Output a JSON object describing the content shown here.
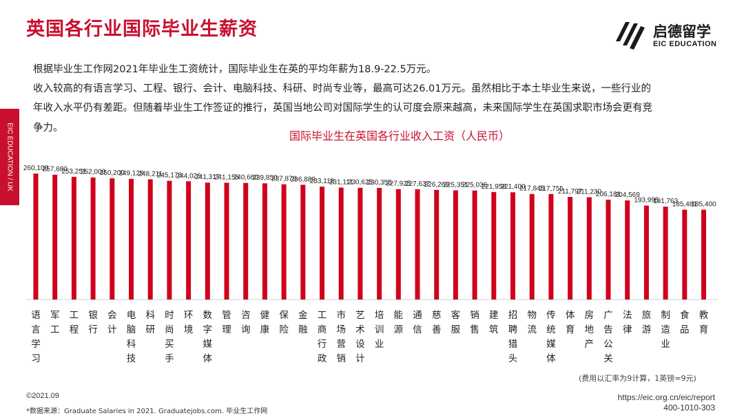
{
  "header": {
    "title": "英国各行业国际毕业生薪资",
    "logo_cn": "启德留学",
    "logo_en": "EIC EDUCATION",
    "brand_color": "#c8102e"
  },
  "sidebar": {
    "label": "EIC EDUCATION / UK"
  },
  "intro": {
    "line1": "根据毕业生工作网2021年毕业生工资统计，国际毕业生在英的平均年薪为18.9-22.5万元。",
    "line2": "收入较高的有语言学习、工程、银行、会计、电脑科技、科研、时尚专业等，最高可达26.01万元。虽然相比于本土毕业生来说，一些行业的",
    "line3": "年收入水平仍有差距。但随着毕业生工作签证的推行，英国当地公司对国际学生的认可度会原来越高，未来国际学生在英国求职市场会更有竞",
    "line4": "争力。"
  },
  "chart_data": {
    "type": "bar",
    "title": "国际毕业生在英国各行业收入工资（人民币）",
    "categories": [
      "语言学习",
      "军工",
      "工程",
      "银行",
      "会计",
      "电脑科技",
      "科研",
      "时尚买手",
      "环境",
      "数字媒体",
      "管理",
      "咨询",
      "健康",
      "保险",
      "金融",
      "工商行政",
      "市场营销",
      "艺术设计",
      "培训业",
      "能源",
      "通信",
      "慈善",
      "客服",
      "销售",
      "建筑",
      "招聘猎头",
      "物流",
      "传统媒体",
      "体育",
      "房地产",
      "广告公关",
      "法律",
      "旅游",
      "制造业",
      "食品",
      "教育"
    ],
    "values": [
      260100,
      257680,
      253251,
      252000,
      250200,
      249129,
      248211,
      245178,
      244026,
      241317,
      241155,
      240660,
      239850,
      237879,
      236889,
      233118,
      231111,
      230625,
      230355,
      227925,
      227637,
      226269,
      225351,
      225036,
      221958,
      221400,
      217845,
      217755,
      211797,
      211230,
      206181,
      204569,
      193995,
      191763,
      185481,
      185400
    ],
    "value_labels": [
      "260,100",
      "257,680",
      "253,251",
      "252,000",
      "250,200",
      "249,129",
      "248,211",
      "245,178",
      "244,026",
      "241,317",
      "241,155",
      "240,660",
      "239,850",
      "237,879",
      "236,889",
      "233,118",
      "231,111",
      "230,625",
      "230,355",
      "227,925",
      "227,637",
      "226,269",
      "225,351",
      "225,036",
      "221,958",
      "221,400",
      "217,845",
      "217,755",
      "211,797",
      "211,230",
      "206,181",
      "204,569",
      "193,995",
      "191,763",
      "185,481",
      "185,400"
    ],
    "ylim": [
      0,
      260100
    ],
    "grid": false,
    "bar_color": "#d0021b"
  },
  "note": "(费用以汇率为9计算，1英镑=9元)",
  "footer": {
    "date": "©2021.09",
    "source": "*数据来源：Graduate Salaries in 2021. Graduatejobs.com. 毕业生工作网",
    "url": "https://eic.org.cn/eic/report",
    "phone": "400-1010-303"
  }
}
